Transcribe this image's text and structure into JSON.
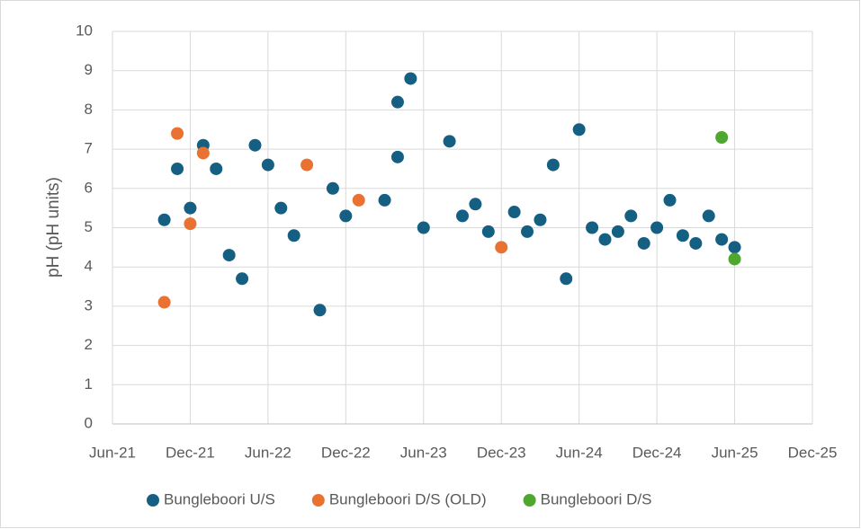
{
  "chart_data": {
    "type": "scatter",
    "ylabel": "pH (pH units)",
    "xlim": [
      "2021-06",
      "2025-12"
    ],
    "xticks": [
      {
        "value": "2021-06",
        "label": "Jun-21"
      },
      {
        "value": "2021-12",
        "label": "Dec-21"
      },
      {
        "value": "2022-06",
        "label": "Jun-22"
      },
      {
        "value": "2022-12",
        "label": "Dec-22"
      },
      {
        "value": "2023-06",
        "label": "Jun-23"
      },
      {
        "value": "2023-12",
        "label": "Dec-23"
      },
      {
        "value": "2024-06",
        "label": "Jun-24"
      },
      {
        "value": "2024-12",
        "label": "Dec-24"
      },
      {
        "value": "2025-06",
        "label": "Jun-25"
      },
      {
        "value": "2025-12",
        "label": "Dec-25"
      }
    ],
    "ylim": [
      0,
      10
    ],
    "yticks": [
      0,
      1,
      2,
      3,
      4,
      5,
      6,
      7,
      8,
      9,
      10
    ],
    "grid": true,
    "legend": "bottom",
    "series": [
      {
        "name": "Bungleboori U/S",
        "color": "#156082",
        "x": [
          "2021-10",
          "2021-11",
          "2021-12",
          "2022-01",
          "2022-02",
          "2022-03",
          "2022-04",
          "2022-05",
          "2022-06",
          "2022-07",
          "2022-08",
          "2022-10",
          "2022-11",
          "2022-12",
          "2023-03",
          "2023-04",
          "2023-04",
          "2023-05",
          "2023-06",
          "2023-08",
          "2023-09",
          "2023-10",
          "2023-11",
          "2024-01",
          "2024-02",
          "2024-03",
          "2024-04",
          "2024-05",
          "2024-06",
          "2024-07",
          "2024-08",
          "2024-09",
          "2024-10",
          "2024-11",
          "2024-12",
          "2025-01",
          "2025-02",
          "2025-03",
          "2025-04",
          "2025-05",
          "2025-06"
        ],
        "values": [
          5.2,
          6.5,
          5.5,
          7.1,
          6.5,
          4.3,
          3.7,
          7.1,
          6.6,
          5.5,
          4.8,
          2.9,
          6.0,
          5.3,
          5.7,
          8.2,
          6.8,
          8.8,
          5.0,
          7.2,
          5.3,
          5.6,
          4.9,
          5.4,
          4.9,
          5.2,
          6.6,
          3.7,
          7.5,
          5.0,
          4.7,
          4.9,
          5.3,
          4.6,
          5.0,
          5.7,
          4.8,
          4.6,
          5.3,
          4.7,
          4.5
        ]
      },
      {
        "name": "Bungleboori D/S (OLD)",
        "color": "#e97132",
        "x": [
          "2021-10",
          "2021-11",
          "2021-12",
          "2022-01",
          "2022-09",
          "2023-01",
          "2023-12"
        ],
        "values": [
          3.1,
          7.4,
          5.1,
          6.9,
          6.6,
          5.7,
          4.5
        ]
      },
      {
        "name": "Bungleboori D/S",
        "color": "#4ea72e",
        "x": [
          "2025-05",
          "2025-06"
        ],
        "values": [
          7.3,
          4.2
        ]
      }
    ]
  }
}
